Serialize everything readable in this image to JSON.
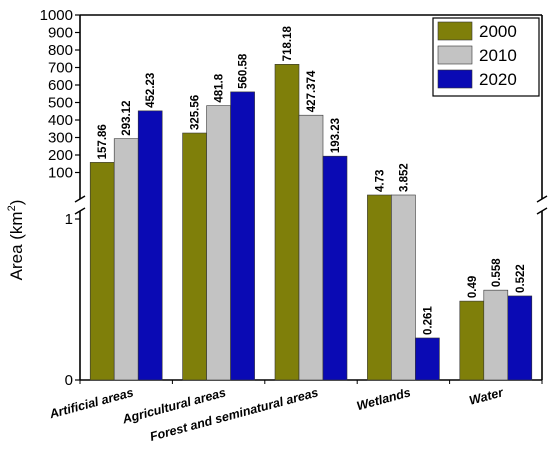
{
  "chart_data": {
    "type": "bar",
    "ylabel": "Area (km",
    "ylabel_sup": "2",
    "ylabel_close": ")",
    "categories": [
      "Artificial areas",
      "Agricultural areas",
      "Forest and seminatural areas",
      "Wetlands",
      "Water"
    ],
    "series": [
      {
        "name": "2000",
        "color": "#7f7f0a",
        "values": [
          157.86,
          325.56,
          718.18,
          4.73,
          0.49
        ],
        "labels": [
          "157.86",
          "325.56",
          "718.18",
          "4.73",
          "0.49"
        ]
      },
      {
        "name": "2010",
        "color": "#c3c3c3",
        "values": [
          293.12,
          481.8,
          427.374,
          3.852,
          0.558
        ],
        "labels": [
          "293.12",
          "481.8",
          "427.374",
          "3.852",
          "0.558"
        ]
      },
      {
        "name": "2020",
        "color": "#0a0ab4",
        "values": [
          452.23,
          560.58,
          193.23,
          0.261,
          0.522
        ],
        "labels": [
          "452.23",
          "560.58",
          "193.23",
          "0.261",
          "0.522"
        ]
      }
    ],
    "y_axis_broken": true,
    "ylim_lower": [
      0,
      1
    ],
    "ylim_upper": [
      0,
      1000
    ],
    "yticks_lower": [
      "0",
      "1"
    ],
    "yticks_upper": [
      "100",
      "200",
      "300",
      "400",
      "500",
      "600",
      "700",
      "800",
      "900",
      "1000"
    ],
    "legend_position": "top-right",
    "grid": false
  }
}
